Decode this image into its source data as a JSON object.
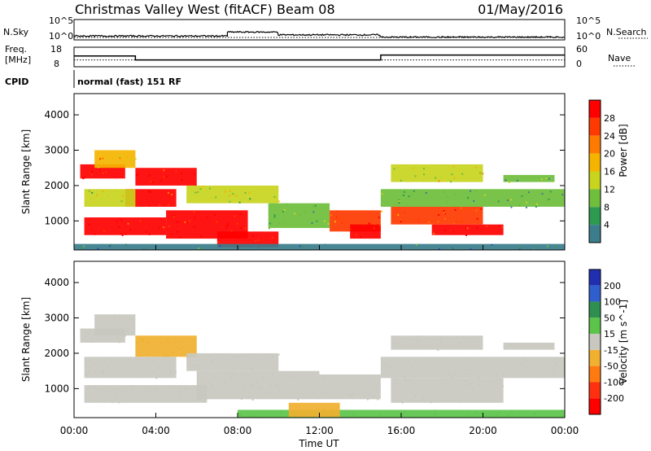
{
  "header": {
    "title": "Christmas Valley West (fitACF)",
    "beam": "Beam 08",
    "date": "01/May/2016"
  },
  "noise_panel": {
    "left_label": "N.Sky",
    "right_label": "N.Search",
    "left_ticks": [
      "10^5",
      "10^0"
    ],
    "right_ticks": [
      "10^5",
      "10^0"
    ]
  },
  "freq_panel": {
    "left_label_1": "Freq.",
    "left_label_2": "[MHz]",
    "right_label": "Nave",
    "left_ticks": [
      "18",
      "8"
    ],
    "right_ticks": [
      "60",
      "0"
    ]
  },
  "cpid_panel": {
    "label": "CPID",
    "text": "normal (fast) 151 RF"
  },
  "power_panel": {
    "ylabel": "Slant Range [km]",
    "yticks": [
      "4000",
      "3000",
      "2000",
      "1000"
    ],
    "colorbar_label": "Power [dB]",
    "colorbar_ticks": [
      "28",
      "24",
      "20",
      "16",
      "12",
      "8",
      "4"
    ],
    "colors": [
      "#ff0000",
      "#ff3a00",
      "#ff7a00",
      "#f5b400",
      "#c8d41e",
      "#6fbe3c",
      "#2e9a50",
      "#3b7d8c",
      "#2a4fb4",
      "#0a14ff"
    ]
  },
  "velocity_panel": {
    "ylabel": "Slant Range [km]",
    "yticks": [
      "4000",
      "3000",
      "2000",
      "1000"
    ],
    "colorbar_label": "Velocity [m s^-1]",
    "colorbar_ticks": [
      "200",
      "100",
      "50",
      "15",
      "-15",
      "-50",
      "-100",
      "-200"
    ],
    "colors": [
      "#1f2fb0",
      "#2f5fcf",
      "#2e8f50",
      "#5cc44a",
      "#c8c8c0",
      "#f0b030",
      "#ff7a10",
      "#ff3010",
      "#ff0000"
    ]
  },
  "xaxis": {
    "label": "Time UT",
    "ticks": [
      "00:00",
      "04:00",
      "08:00",
      "12:00",
      "16:00",
      "20:00",
      "00:00"
    ]
  },
  "chart_data": {
    "type": "heatmap",
    "title": "Christmas Valley West (fitACF)",
    "xlabel": "Time UT",
    "ylabel": "Slant Range [km]",
    "xlim": [
      0,
      24
    ],
    "ylim": [
      180,
      4600
    ],
    "frequency_MHz": {
      "x": [
        0,
        3,
        3,
        15,
        15,
        24
      ],
      "y": [
        13.5,
        13.5,
        11.5,
        11.5,
        14,
        14
      ]
    },
    "nave": {
      "x": [
        0,
        24
      ],
      "y": [
        21,
        21
      ]
    },
    "sky_noise_regions": [
      {
        "x0": 0,
        "x1": 7.5,
        "level": 0.35
      },
      {
        "x0": 7.5,
        "x1": 10,
        "level": 0.7
      },
      {
        "x0": 10,
        "x1": 15,
        "level": 0.45
      },
      {
        "x0": 15,
        "x1": 24,
        "level": 0.25
      }
    ],
    "power_regions": [
      {
        "x0": 0.3,
        "x1": 2.5,
        "y0": 2200,
        "y1": 2600,
        "value": 28
      },
      {
        "x0": 1.0,
        "x1": 3.0,
        "y0": 2500,
        "y1": 3000,
        "value": 20
      },
      {
        "x0": 3.0,
        "x1": 6.0,
        "y0": 2000,
        "y1": 2500,
        "value": 28
      },
      {
        "x0": 2.5,
        "x1": 5.0,
        "y0": 1400,
        "y1": 1900,
        "value": 28
      },
      {
        "x0": 0.5,
        "x1": 3.0,
        "y0": 1400,
        "y1": 1900,
        "value": 16
      },
      {
        "x0": 0.5,
        "x1": 4.5,
        "y0": 600,
        "y1": 1100,
        "value": 28
      },
      {
        "x0": 4.5,
        "x1": 8.5,
        "y0": 500,
        "y1": 1300,
        "value": 28
      },
      {
        "x0": 7.0,
        "x1": 10.0,
        "y0": 250,
        "y1": 700,
        "value": 28
      },
      {
        "x0": 5.5,
        "x1": 10.0,
        "y0": 1500,
        "y1": 2000,
        "value": 16
      },
      {
        "x0": 9.5,
        "x1": 12.5,
        "y0": 800,
        "y1": 1500,
        "value": 12
      },
      {
        "x0": 12.5,
        "x1": 15.0,
        "y0": 700,
        "y1": 1300,
        "value": 24
      },
      {
        "x0": 13.5,
        "x1": 15.0,
        "y0": 500,
        "y1": 900,
        "value": 28
      },
      {
        "x0": 15.0,
        "x1": 24.0,
        "y0": 1400,
        "y1": 1900,
        "value": 12
      },
      {
        "x0": 15.5,
        "x1": 20.0,
        "y0": 900,
        "y1": 1400,
        "value": 24
      },
      {
        "x0": 17.5,
        "x1": 21.0,
        "y0": 600,
        "y1": 900,
        "value": 28
      },
      {
        "x0": 15.5,
        "x1": 20.0,
        "y0": 2100,
        "y1": 2600,
        "value": 16
      },
      {
        "x0": 21.0,
        "x1": 23.5,
        "y0": 2100,
        "y1": 2300,
        "value": 12
      },
      {
        "x0": 0.0,
        "x1": 24.0,
        "y0": 180,
        "y1": 350,
        "value": 8
      }
    ],
    "velocity_regions": [
      {
        "x0": 0.3,
        "x1": 2.5,
        "y0": 2300,
        "y1": 2700,
        "value": 0
      },
      {
        "x0": 1.0,
        "x1": 3.0,
        "y0": 2500,
        "y1": 3100,
        "value": 0
      },
      {
        "x0": 3.0,
        "x1": 6.0,
        "y0": 1900,
        "y1": 2500,
        "value": -30
      },
      {
        "x0": 0.5,
        "x1": 5.0,
        "y0": 1300,
        "y1": 1900,
        "value": 0
      },
      {
        "x0": 0.5,
        "x1": 6.5,
        "y0": 600,
        "y1": 1100,
        "value": 0
      },
      {
        "x0": 6.0,
        "x1": 12.0,
        "y0": 700,
        "y1": 1500,
        "value": 0
      },
      {
        "x0": 5.5,
        "x1": 10.0,
        "y0": 1500,
        "y1": 2000,
        "value": 0
      },
      {
        "x0": 12.0,
        "x1": 15.0,
        "y0": 700,
        "y1": 1400,
        "value": 0
      },
      {
        "x0": 15.0,
        "x1": 24.0,
        "y0": 1300,
        "y1": 1900,
        "value": 0
      },
      {
        "x0": 15.5,
        "x1": 21.0,
        "y0": 600,
        "y1": 1300,
        "value": 0
      },
      {
        "x0": 15.5,
        "x1": 20.0,
        "y0": 2100,
        "y1": 2500,
        "value": 0
      },
      {
        "x0": 21.0,
        "x1": 23.5,
        "y0": 2100,
        "y1": 2300,
        "value": 0
      },
      {
        "x0": 8.0,
        "x1": 24.0,
        "y0": 180,
        "y1": 400,
        "value": 30
      },
      {
        "x0": 10.5,
        "x1": 13.0,
        "y0": 200,
        "y1": 600,
        "value": -40
      }
    ]
  }
}
